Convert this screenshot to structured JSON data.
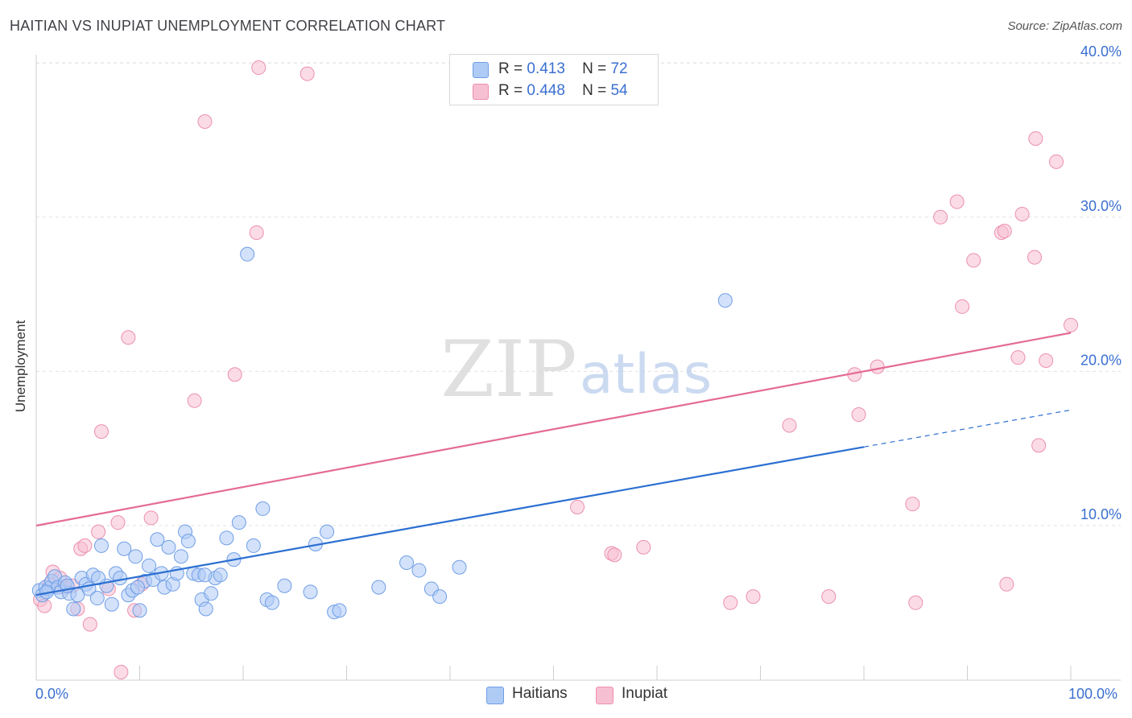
{
  "title": "HAITIAN VS INUPIAT UNEMPLOYMENT CORRELATION CHART",
  "source": "Source: ZipAtlas.com",
  "watermark": {
    "zip": "ZIP",
    "atlas": "atlas"
  },
  "legend": {
    "haitians": {
      "r_label": "R =",
      "r": "0.413",
      "n_label": "N =",
      "n": "72"
    },
    "inupiat": {
      "r_label": "R =",
      "r": "0.448",
      "n_label": "N =",
      "n": "54"
    }
  },
  "colors": {
    "haitians_fill": "#aecbf5",
    "haitians_stroke": "#6f9ee6",
    "haitians_line": "#2c6fd1",
    "inupiat_fill": "#f7c0d2",
    "inupiat_stroke": "#ec8fae",
    "inupiat_line": "#e46b95",
    "axis_text": "#3a6fd0",
    "grid": "#e2e2e2"
  },
  "chart_data": {
    "type": "scatter",
    "title": "HAITIAN VS INUPIAT UNEMPLOYMENT CORRELATION CHART",
    "xlabel": "",
    "ylabel": "Unemployment",
    "xlim": [
      0,
      100
    ],
    "ylim": [
      0,
      42
    ],
    "x_tick_labels": [
      "0.0%",
      "100.0%"
    ],
    "y_ticks": [
      10,
      20,
      30,
      40
    ],
    "y_tick_labels": [
      "10.0%",
      "20.0%",
      "30.0%",
      "40.0%"
    ],
    "grid": true,
    "series": [
      {
        "name": "Haitians",
        "r": 0.413,
        "n": 72,
        "trend": {
          "x0": 0,
          "y0": 5.5,
          "x1": 80,
          "y1": 15.1,
          "dash_to_x": 100,
          "dash_to_y": 17.5
        },
        "points": [
          [
            0.3,
            5.8
          ],
          [
            0.6,
            5.5
          ],
          [
            0.9,
            6.0
          ],
          [
            1.2,
            5.9
          ],
          [
            1.5,
            6.4
          ],
          [
            1.8,
            6.7
          ],
          [
            2.1,
            6.0
          ],
          [
            2.4,
            5.7
          ],
          [
            2.8,
            6.3
          ],
          [
            3.2,
            5.6
          ],
          [
            3.6,
            4.6
          ],
          [
            4.0,
            5.5
          ],
          [
            4.4,
            6.6
          ],
          [
            4.8,
            6.2
          ],
          [
            5.1,
            5.9
          ],
          [
            5.5,
            6.8
          ],
          [
            5.9,
            5.3
          ],
          [
            6.3,
            8.7
          ],
          [
            6.8,
            6.1
          ],
          [
            7.3,
            4.9
          ],
          [
            7.7,
            6.9
          ],
          [
            8.1,
            6.6
          ],
          [
            8.5,
            8.5
          ],
          [
            8.9,
            5.5
          ],
          [
            9.3,
            5.8
          ],
          [
            9.6,
            8.0
          ],
          [
            10.0,
            4.5
          ],
          [
            10.5,
            6.4
          ],
          [
            10.9,
            7.4
          ],
          [
            11.3,
            6.5
          ],
          [
            11.7,
            9.1
          ],
          [
            12.1,
            6.9
          ],
          [
            12.4,
            6.0
          ],
          [
            12.8,
            8.6
          ],
          [
            13.2,
            6.2
          ],
          [
            13.6,
            6.9
          ],
          [
            14.0,
            8.0
          ],
          [
            14.4,
            9.6
          ],
          [
            14.7,
            9.0
          ],
          [
            15.2,
            6.9
          ],
          [
            15.7,
            6.8
          ],
          [
            16.0,
            5.2
          ],
          [
            16.4,
            4.6
          ],
          [
            16.9,
            5.6
          ],
          [
            17.3,
            6.6
          ],
          [
            17.8,
            6.8
          ],
          [
            18.4,
            9.2
          ],
          [
            19.1,
            7.8
          ],
          [
            19.6,
            10.2
          ],
          [
            20.4,
            27.6
          ],
          [
            21.0,
            8.7
          ],
          [
            21.9,
            11.1
          ],
          [
            22.3,
            5.2
          ],
          [
            22.8,
            5.0
          ],
          [
            26.5,
            5.7
          ],
          [
            27.0,
            8.8
          ],
          [
            28.1,
            9.6
          ],
          [
            28.8,
            4.4
          ],
          [
            29.3,
            4.5
          ],
          [
            33.1,
            6.0
          ],
          [
            35.8,
            7.6
          ],
          [
            37.0,
            7.1
          ],
          [
            38.2,
            5.9
          ],
          [
            39.0,
            5.4
          ],
          [
            40.9,
            7.3
          ],
          [
            66.6,
            24.6
          ],
          [
            1.0,
            5.7
          ],
          [
            3.0,
            6.1
          ],
          [
            6.0,
            6.6
          ],
          [
            9.8,
            6.0
          ],
          [
            16.3,
            6.8
          ],
          [
            24.0,
            6.1
          ]
        ]
      },
      {
        "name": "Inupiat",
        "r": 0.448,
        "n": 54,
        "trend": {
          "x0": 0,
          "y0": 10.0,
          "x1": 100,
          "y1": 22.5
        },
        "points": [
          [
            0.4,
            5.2
          ],
          [
            0.8,
            4.8
          ],
          [
            1.3,
            6.2
          ],
          [
            1.6,
            7.0
          ],
          [
            2.3,
            6.6
          ],
          [
            2.8,
            6.0
          ],
          [
            3.5,
            6.1
          ],
          [
            4.0,
            4.6
          ],
          [
            4.3,
            8.5
          ],
          [
            4.7,
            8.7
          ],
          [
            5.2,
            3.6
          ],
          [
            6.0,
            9.6
          ],
          [
            6.3,
            16.1
          ],
          [
            7.0,
            5.9
          ],
          [
            7.9,
            10.2
          ],
          [
            8.2,
            0.5
          ],
          [
            8.9,
            22.2
          ],
          [
            9.5,
            4.5
          ],
          [
            10.2,
            6.2
          ],
          [
            11.1,
            10.5
          ],
          [
            15.3,
            18.1
          ],
          [
            16.3,
            36.2
          ],
          [
            19.2,
            19.8
          ],
          [
            21.3,
            29.0
          ],
          [
            21.5,
            39.7
          ],
          [
            26.2,
            39.3
          ],
          [
            52.3,
            11.2
          ],
          [
            55.6,
            8.2
          ],
          [
            55.9,
            8.1
          ],
          [
            58.7,
            8.6
          ],
          [
            67.1,
            5.0
          ],
          [
            69.3,
            5.4
          ],
          [
            72.8,
            16.5
          ],
          [
            76.6,
            5.4
          ],
          [
            79.1,
            19.8
          ],
          [
            79.5,
            17.2
          ],
          [
            81.3,
            20.3
          ],
          [
            84.7,
            11.4
          ],
          [
            85.0,
            5.0
          ],
          [
            87.4,
            30.0
          ],
          [
            89.0,
            31.0
          ],
          [
            89.5,
            24.2
          ],
          [
            90.6,
            27.2
          ],
          [
            93.3,
            29.0
          ],
          [
            93.6,
            29.1
          ],
          [
            93.8,
            6.2
          ],
          [
            94.9,
            20.9
          ],
          [
            95.3,
            30.2
          ],
          [
            96.5,
            27.4
          ],
          [
            96.6,
            35.1
          ],
          [
            96.9,
            15.2
          ],
          [
            97.6,
            20.7
          ],
          [
            98.6,
            33.6
          ],
          [
            100.0,
            23.0
          ]
        ]
      }
    ]
  },
  "axes": {
    "y_tick_labels": [
      "10.0%",
      "20.0%",
      "30.0%",
      "40.0%"
    ],
    "x_min_label": "0.0%",
    "x_max_label": "100.0%"
  }
}
